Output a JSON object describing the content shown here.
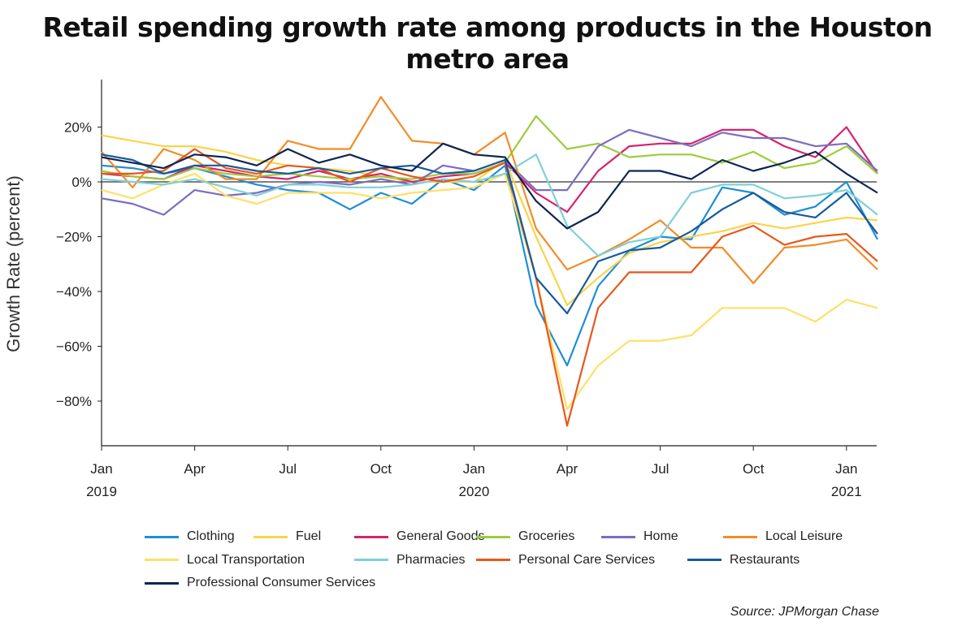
{
  "title": "Retail spending growth rate among products in the Houston metro area",
  "source": "Source: JPMorgan Chase",
  "chart_data": {
    "type": "line",
    "ylabel": "Growth Rate (percent)",
    "xlabel": "",
    "ylim": [
      -95,
      38
    ],
    "yticks": [
      20,
      0,
      -20,
      -40,
      -60,
      -80
    ],
    "ytick_labels": [
      "20%",
      "0%",
      "−20%",
      "−40%",
      "−60%",
      "−80%"
    ],
    "x_months": [
      "2019-01",
      "2019-02",
      "2019-03",
      "2019-04",
      "2019-05",
      "2019-06",
      "2019-07",
      "2019-08",
      "2019-09",
      "2019-10",
      "2019-11",
      "2019-12",
      "2020-01",
      "2020-02",
      "2020-03",
      "2020-04",
      "2020-05",
      "2020-06",
      "2020-07",
      "2020-08",
      "2020-09",
      "2020-10",
      "2020-11",
      "2020-12",
      "2021-01",
      "2021-02"
    ],
    "xticks": [
      {
        "month": "2019-01",
        "label": "Jan",
        "year": "2019"
      },
      {
        "month": "2019-04",
        "label": "Apr",
        "year": ""
      },
      {
        "month": "2019-07",
        "label": "Jul",
        "year": ""
      },
      {
        "month": "2019-10",
        "label": "Oct",
        "year": ""
      },
      {
        "month": "2020-01",
        "label": "Jan",
        "year": "2020"
      },
      {
        "month": "2020-04",
        "label": "Apr",
        "year": ""
      },
      {
        "month": "2020-07",
        "label": "Jul",
        "year": ""
      },
      {
        "month": "2020-10",
        "label": "Oct",
        "year": ""
      },
      {
        "month": "2021-01",
        "label": "Jan",
        "year": "2021"
      }
    ],
    "zero_line": true,
    "legend_position": "bottom",
    "series": [
      {
        "name": "Clothing",
        "color": "#1f8dd6",
        "values": [
          6,
          5,
          3,
          5,
          2,
          -1,
          -3,
          -4,
          -10,
          -4,
          -8,
          1,
          -3,
          6,
          -45,
          -67,
          -38,
          -25,
          -20,
          -21,
          -2,
          -4,
          -12,
          -9,
          0,
          -21
        ]
      },
      {
        "name": "Fuel",
        "color": "#f9d44a",
        "values": [
          17,
          15,
          13,
          13,
          11,
          8,
          6,
          5,
          4,
          2,
          0,
          0,
          0,
          8,
          -20,
          -45,
          -35,
          -26,
          -22,
          -20,
          -18,
          -15,
          -17,
          -15,
          -13,
          -14
        ]
      },
      {
        "name": "General Goods",
        "color": "#d6226e",
        "values": [
          3,
          2,
          1,
          6,
          4,
          2,
          1,
          4,
          1,
          3,
          0,
          2,
          3,
          7,
          -4,
          -11,
          4,
          13,
          14,
          14,
          19,
          19,
          13,
          9,
          20,
          3
        ]
      },
      {
        "name": "Groceries",
        "color": "#9ccc3c",
        "values": [
          4,
          2,
          1,
          5,
          3,
          2,
          3,
          2,
          1,
          2,
          1,
          3,
          3,
          7,
          24,
          12,
          14,
          9,
          10,
          10,
          7,
          11,
          5,
          7,
          13,
          3
        ]
      },
      {
        "name": "Home",
        "color": "#7e6cc0",
        "values": [
          -6,
          -8,
          -12,
          -3,
          -5,
          -4,
          -1,
          0,
          -1,
          1,
          -1,
          6,
          4,
          8,
          -3,
          -3,
          13,
          19,
          16,
          13,
          18,
          16,
          16,
          13,
          14,
          4
        ]
      },
      {
        "name": "Local Leisure",
        "color": "#f28c28",
        "values": [
          11,
          -2,
          12,
          8,
          1,
          1,
          15,
          12,
          12,
          31,
          15,
          14,
          10,
          18,
          -17,
          -32,
          -27,
          -21,
          -14,
          -24,
          -24,
          -37,
          -24,
          -23,
          -21,
          -32
        ]
      },
      {
        "name": "Local Transportation",
        "color": "#ffe066",
        "values": [
          -3,
          -6,
          -1,
          3,
          -5,
          -8,
          -4,
          -4,
          -4,
          -6,
          -4,
          -3,
          -2,
          3,
          -35,
          -83,
          -67,
          -58,
          -58,
          -56,
          -46,
          -46,
          -46,
          -51,
          -43,
          -46
        ]
      },
      {
        "name": "Pharmacies",
        "color": "#7fd0d8",
        "values": [
          1,
          0,
          -1,
          1,
          -2,
          -5,
          -1,
          -1,
          -2,
          -2,
          -1,
          1,
          0,
          3,
          10,
          -16,
          -27,
          -22,
          -20,
          -4,
          -1,
          -1,
          -6,
          -5,
          -3,
          -12
        ]
      },
      {
        "name": "Personal Care Services",
        "color": "#e8571b",
        "values": [
          3,
          3,
          4,
          12,
          5,
          3,
          6,
          5,
          0,
          5,
          2,
          0,
          2,
          7,
          -35,
          -89,
          -46,
          -33,
          -33,
          -33,
          -20,
          -16,
          -23,
          -20,
          -19,
          -29
        ]
      },
      {
        "name": "Restaurants",
        "color": "#175b9a",
        "values": [
          10,
          8,
          3,
          6,
          6,
          4,
          3,
          5,
          3,
          5,
          6,
          3,
          4,
          8,
          -35,
          -48,
          -29,
          -25,
          -24,
          -18,
          -10,
          -4,
          -11,
          -13,
          -4,
          -19
        ]
      },
      {
        "name": "Professional Consumer Services",
        "color": "#0d2650",
        "values": [
          9,
          7,
          5,
          10,
          9,
          6,
          12,
          7,
          10,
          6,
          4,
          14,
          10,
          9,
          -7,
          -17,
          -11,
          4,
          4,
          1,
          8,
          4,
          7,
          11,
          3,
          -4
        ]
      }
    ]
  }
}
